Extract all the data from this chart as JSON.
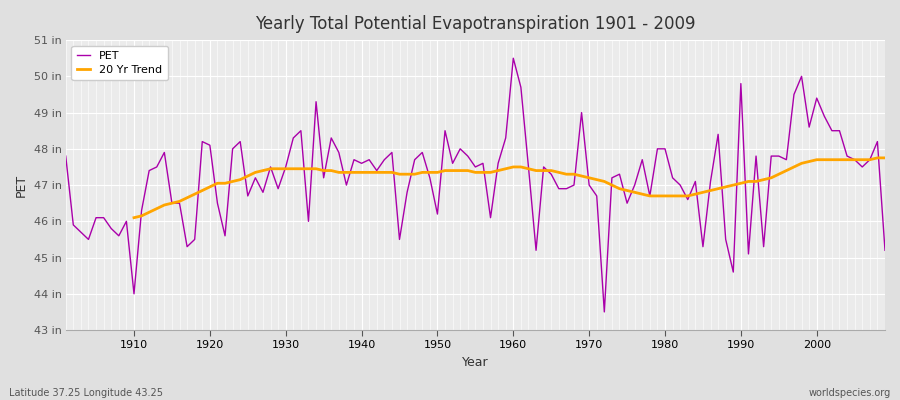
{
  "title": "Yearly Total Potential Evapotranspiration 1901 - 2009",
  "xlabel": "Year",
  "ylabel": "PET",
  "pet_color": "#aa00aa",
  "trend_color": "#ffa500",
  "fig_bg_color": "#e0e0e0",
  "plot_bg_color": "#ebebeb",
  "grid_color": "#ffffff",
  "ylim": [
    43,
    51
  ],
  "ytick_labels": [
    "43 in",
    "44 in",
    "45 in",
    "46 in",
    "47 in",
    "48 in",
    "49 in",
    "50 in",
    "51 in"
  ],
  "ytick_values": [
    43,
    44,
    45,
    46,
    47,
    48,
    49,
    50,
    51
  ],
  "years": [
    1901,
    1902,
    1903,
    1904,
    1905,
    1906,
    1907,
    1908,
    1909,
    1910,
    1911,
    1912,
    1913,
    1914,
    1915,
    1916,
    1917,
    1918,
    1919,
    1920,
    1921,
    1922,
    1923,
    1924,
    1925,
    1926,
    1927,
    1928,
    1929,
    1930,
    1931,
    1932,
    1933,
    1934,
    1935,
    1936,
    1937,
    1938,
    1939,
    1940,
    1941,
    1942,
    1943,
    1944,
    1945,
    1946,
    1947,
    1948,
    1949,
    1950,
    1951,
    1952,
    1953,
    1954,
    1955,
    1956,
    1957,
    1958,
    1959,
    1960,
    1961,
    1962,
    1963,
    1964,
    1965,
    1966,
    1967,
    1968,
    1969,
    1970,
    1971,
    1972,
    1973,
    1974,
    1975,
    1976,
    1977,
    1978,
    1979,
    1980,
    1981,
    1982,
    1983,
    1984,
    1985,
    1986,
    1987,
    1988,
    1989,
    1990,
    1991,
    1992,
    1993,
    1994,
    1995,
    1996,
    1997,
    1998,
    1999,
    2000,
    2001,
    2002,
    2003,
    2004,
    2005,
    2006,
    2007,
    2008,
    2009
  ],
  "pet_values": [
    47.8,
    45.9,
    45.7,
    45.5,
    46.1,
    46.1,
    45.8,
    45.6,
    46.0,
    44.0,
    46.3,
    47.4,
    47.5,
    47.9,
    46.5,
    46.5,
    45.3,
    45.5,
    48.2,
    48.1,
    46.5,
    45.6,
    48.0,
    48.2,
    46.7,
    47.2,
    46.8,
    47.5,
    46.9,
    47.5,
    48.3,
    48.5,
    46.0,
    49.3,
    47.2,
    48.3,
    47.9,
    47.0,
    47.7,
    47.6,
    47.7,
    47.4,
    47.7,
    47.9,
    45.5,
    46.8,
    47.7,
    47.9,
    47.2,
    46.2,
    48.5,
    47.6,
    48.0,
    47.8,
    47.5,
    47.6,
    46.1,
    47.6,
    48.3,
    50.5,
    49.7,
    47.5,
    45.2,
    47.5,
    47.3,
    46.9,
    46.9,
    47.0,
    49.0,
    47.0,
    46.7,
    43.5,
    47.2,
    47.3,
    46.5,
    47.0,
    47.7,
    46.7,
    48.0,
    48.0,
    47.2,
    47.0,
    46.6,
    47.1,
    45.3,
    47.1,
    48.4,
    45.5,
    44.6,
    49.8,
    45.1,
    47.8,
    45.3,
    47.8,
    47.8,
    47.7,
    49.5,
    50.0,
    48.6,
    49.4,
    48.9,
    48.5,
    48.5,
    47.8,
    47.7,
    47.5,
    47.7,
    48.2,
    45.2
  ],
  "trend_years": [
    1910,
    1911,
    1912,
    1913,
    1914,
    1915,
    1916,
    1917,
    1918,
    1919,
    1920,
    1921,
    1922,
    1923,
    1924,
    1925,
    1926,
    1927,
    1928,
    1929,
    1930,
    1931,
    1932,
    1933,
    1934,
    1935,
    1936,
    1937,
    1938,
    1939,
    1940,
    1941,
    1942,
    1943,
    1944,
    1945,
    1946,
    1947,
    1948,
    1949,
    1950,
    1951,
    1952,
    1953,
    1954,
    1955,
    1956,
    1957,
    1958,
    1959,
    1960,
    1961,
    1962,
    1963,
    1964,
    1965,
    1966,
    1967,
    1968,
    1969,
    1970,
    1971,
    1972,
    1973,
    1974,
    1975,
    1976,
    1977,
    1978,
    1979,
    1980,
    1981,
    1982,
    1983,
    1984,
    1985,
    1986,
    1987,
    1988,
    1989,
    1990,
    1991,
    1992,
    1993,
    1994,
    1995,
    1996,
    1997,
    1998,
    1999,
    2000,
    2001,
    2002,
    2003,
    2004,
    2005,
    2006,
    2007,
    2008,
    2009
  ],
  "trend_values": [
    46.1,
    46.15,
    46.25,
    46.35,
    46.45,
    46.5,
    46.55,
    46.65,
    46.75,
    46.85,
    46.95,
    47.05,
    47.05,
    47.1,
    47.15,
    47.25,
    47.35,
    47.4,
    47.45,
    47.45,
    47.45,
    47.45,
    47.45,
    47.45,
    47.45,
    47.4,
    47.4,
    47.35,
    47.35,
    47.35,
    47.35,
    47.35,
    47.35,
    47.35,
    47.35,
    47.3,
    47.3,
    47.3,
    47.35,
    47.35,
    47.35,
    47.4,
    47.4,
    47.4,
    47.4,
    47.35,
    47.35,
    47.35,
    47.4,
    47.45,
    47.5,
    47.5,
    47.45,
    47.4,
    47.4,
    47.4,
    47.35,
    47.3,
    47.3,
    47.25,
    47.2,
    47.15,
    47.1,
    47.0,
    46.9,
    46.85,
    46.8,
    46.75,
    46.7,
    46.7,
    46.7,
    46.7,
    46.7,
    46.7,
    46.75,
    46.8,
    46.85,
    46.9,
    46.95,
    47.0,
    47.05,
    47.1,
    47.1,
    47.15,
    47.2,
    47.3,
    47.4,
    47.5,
    47.6,
    47.65,
    47.7,
    47.7,
    47.7,
    47.7,
    47.7,
    47.7,
    47.7,
    47.7,
    47.75,
    47.75
  ],
  "footnote_left": "Latitude 37.25 Longitude 43.25",
  "footnote_right": "worldspecies.org",
  "legend_pet": "PET",
  "legend_trend": "20 Yr Trend",
  "xticks": [
    1910,
    1920,
    1930,
    1940,
    1950,
    1960,
    1970,
    1980,
    1990,
    2000
  ]
}
